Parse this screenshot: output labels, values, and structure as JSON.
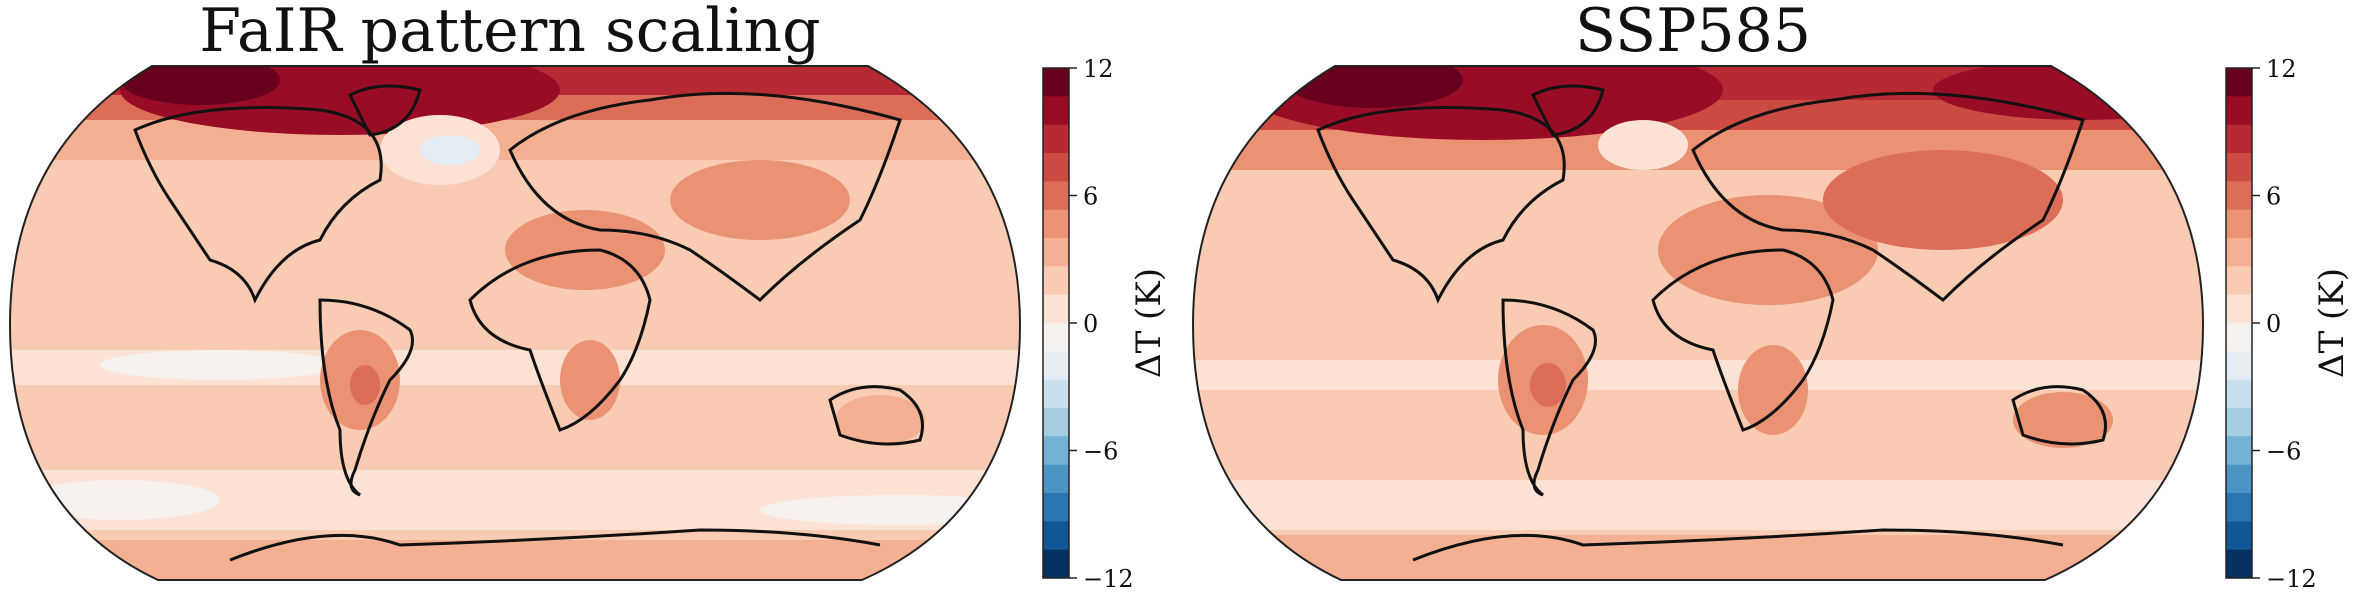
{
  "panels": [
    {
      "title": "FaIR pattern scaling",
      "colorbar_label": "ΔT (K)"
    },
    {
      "title": "SSP585",
      "colorbar_label": "ΔT (K)"
    }
  ],
  "colorbar": {
    "ticks": [
      12,
      6,
      0,
      -6,
      -12
    ],
    "tick_labels": [
      "12",
      "6",
      "0",
      "−6",
      "−12"
    ],
    "range": [
      -12,
      12
    ],
    "levels": 16,
    "colors_top_to_bottom": [
      "#67001f",
      "#980c25",
      "#b72a33",
      "#cb4a42",
      "#dc6d59",
      "#ea9273",
      "#f4b093",
      "#f9cbb3",
      "#fbe2d4",
      "#f7f1ee",
      "#e3edf3",
      "#c9e0ec",
      "#a4cde2",
      "#75b1d4",
      "#4b94c4",
      "#2b75b2",
      "#115695",
      "#053061"
    ]
  },
  "colormap": "RdBu_r"
}
